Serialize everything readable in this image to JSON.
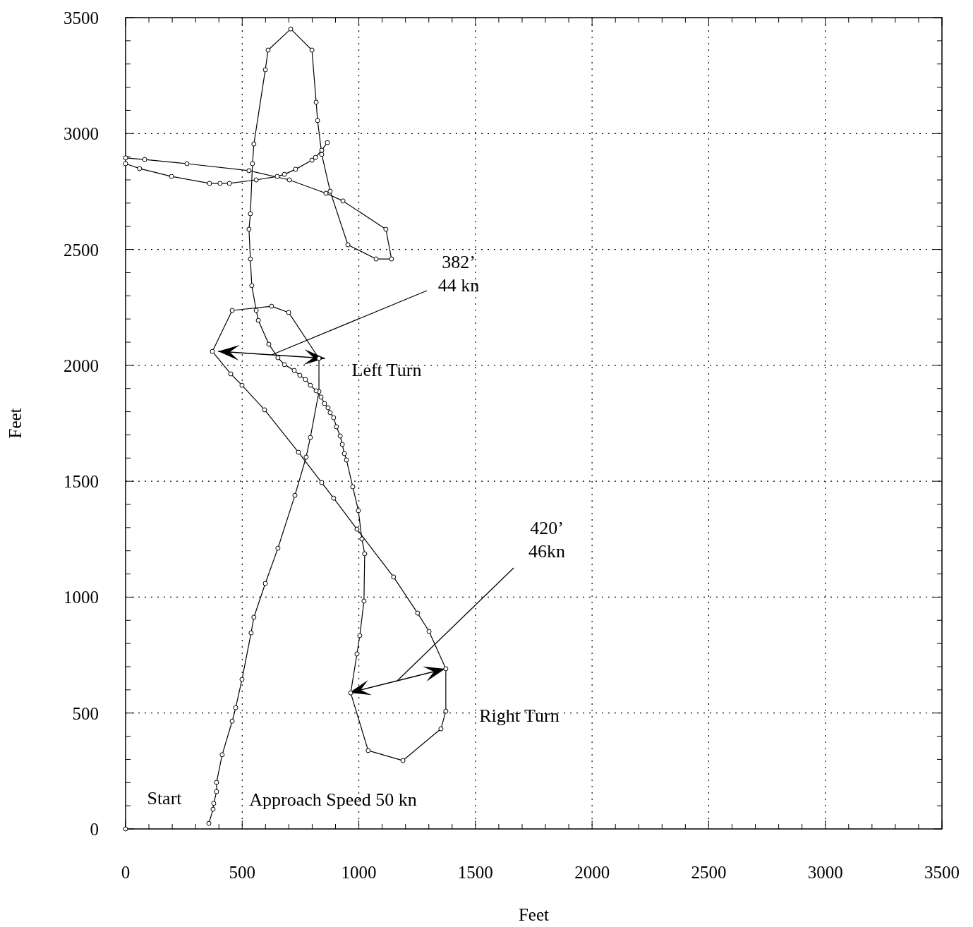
{
  "chart_data": {
    "type": "line",
    "xlabel": "Feet",
    "ylabel": "Feet",
    "xlim": [
      0,
      3500
    ],
    "ylim": [
      0,
      3500
    ],
    "xticks": [
      0,
      {
        "value": 100,
        "label": null
      },
      {
        "value": 200,
        "label": null
      },
      {
        "value": 300,
        "label": null
      },
      {
        "value": 400,
        "label": null
      },
      500,
      {
        "value": 600,
        "label": null
      },
      {
        "value": 700,
        "label": null
      },
      {
        "value": 800,
        "label": null
      },
      {
        "value": 900,
        "label": null
      },
      1000,
      {
        "value": 1100,
        "label": null
      },
      {
        "value": 1200,
        "label": null
      },
      {
        "value": 1300,
        "label": null
      },
      {
        "value": 1400,
        "label": null
      },
      1500,
      {
        "value": 1600,
        "label": null
      },
      {
        "value": 1700,
        "label": null
      },
      {
        "value": 1800,
        "label": null
      },
      {
        "value": 1900,
        "label": null
      },
      2000,
      {
        "value": 2100,
        "label": null
      },
      {
        "value": 2200,
        "label": null
      },
      {
        "value": 2300,
        "label": null
      },
      {
        "value": 2400,
        "label": null
      },
      2500,
      {
        "value": 2600,
        "label": null
      },
      {
        "value": 2700,
        "label": null
      },
      {
        "value": 2800,
        "label": null
      },
      {
        "value": 2900,
        "label": null
      },
      3000,
      {
        "value": 3100,
        "label": null
      },
      {
        "value": 3200,
        "label": null
      },
      {
        "value": 3300,
        "label": null
      },
      {
        "value": 3400,
        "label": null
      },
      3500
    ],
    "yticks": [
      0,
      {
        "value": 100,
        "label": null
      },
      {
        "value": 200,
        "label": null
      },
      {
        "value": 300,
        "label": null
      },
      {
        "value": 400,
        "label": null
      },
      500,
      {
        "value": 600,
        "label": null
      },
      {
        "value": 700,
        "label": null
      },
      {
        "value": 800,
        "label": null
      },
      {
        "value": 900,
        "label": null
      },
      1000,
      {
        "value": 1100,
        "label": null
      },
      {
        "value": 1200,
        "label": null
      },
      {
        "value": 1300,
        "label": null
      },
      {
        "value": 1400,
        "label": null
      },
      1500,
      {
        "value": 1600,
        "label": null
      },
      {
        "value": 1700,
        "label": null
      },
      {
        "value": 1800,
        "label": null
      },
      {
        "value": 1900,
        "label": null
      },
      2000,
      {
        "value": 2100,
        "label": null
      },
      {
        "value": 2200,
        "label": null
      },
      {
        "value": 2300,
        "label": null
      },
      {
        "value": 2400,
        "label": null
      },
      2500,
      {
        "value": 2600,
        "label": null
      },
      {
        "value": 2700,
        "label": null
      },
      {
        "value": 2800,
        "label": null
      },
      {
        "value": 2900,
        "label": null
      },
      3000,
      {
        "value": 3100,
        "label": null
      },
      {
        "value": 3200,
        "label": null
      },
      {
        "value": 3300,
        "label": null
      },
      {
        "value": 3400,
        "label": null
      },
      3500
    ],
    "grid": true,
    "marker": "circle",
    "line_style": "solid",
    "series": [
      {
        "color": "#000000",
        "x": [
          357,
          375,
          378,
          390,
          390,
          414,
          457,
          472,
          499,
          538,
          550,
          599,
          653,
          726,
          774,
          792,
          829,
          829,
          699,
          626,
          457,
          372,
          451,
          499,
          596,
          741,
          841,
          892,
          992,
          1149,
          1252,
          1301,
          1373,
          1373,
          1352,
          1189,
          1040,
          965,
          992,
          1004,
          1022,
          1025,
          1013,
          998,
          974,
          947,
          938,
          929,
          920,
          904,
          892,
          877,
          868,
          853,
          838,
          817,
          792,
          771,
          747,
          723,
          681,
          653,
          614,
          569,
          560,
          541,
          535,
          529,
          535,
          544,
          550,
          599,
          611,
          708,
          799,
          817,
          823,
          841,
          877,
          953,
          1074,
          1140,
          1116,
          932,
          859,
          702,
          529,
          263,
          82,
          0
        ],
        "values": [
          24,
          85,
          110,
          161,
          201,
          320,
          465,
          523,
          645,
          846,
          913,
          1059,
          1211,
          1439,
          1604,
          1689,
          1887,
          2030,
          2228,
          2255,
          2237,
          2060,
          1963,
          1914,
          1808,
          1625,
          1494,
          1427,
          1293,
          1087,
          931,
          852,
          691,
          508,
          432,
          295,
          338,
          587,
          755,
          834,
          983,
          1187,
          1251,
          1373,
          1476,
          1592,
          1619,
          1659,
          1695,
          1735,
          1774,
          1796,
          1817,
          1835,
          1863,
          1890,
          1914,
          1939,
          1957,
          1978,
          2003,
          2033,
          2091,
          2194,
          2237,
          2344,
          2459,
          2587,
          2654,
          2870,
          2955,
          3275,
          3360,
          3451,
          3360,
          3135,
          3056,
          2910,
          2751,
          2520,
          2459,
          2459,
          2587,
          2709,
          2742,
          2800,
          2840,
          2870,
          2888,
          2895
        ]
      },
      {
        "color": "#000000",
        "x": [
          0,
          60,
          197,
          360,
          405,
          445,
          560,
          650,
          681,
          729,
          799,
          814,
          841,
          865
        ],
        "values": [
          2870,
          2849,
          2815,
          2785,
          2785,
          2785,
          2800,
          2815,
          2824,
          2846,
          2885,
          2897,
          2928,
          2961
        ]
      },
      {
        "type": "scatter",
        "color": "#000000",
        "x": [
          0
        ],
        "values": [
          0
        ]
      }
    ],
    "annotations": [
      "382’\n44 kn",
      "420’\n46kn",
      "Left Turn",
      "Right Turn",
      "Start",
      "Approach Speed 50 kn"
    ]
  }
}
